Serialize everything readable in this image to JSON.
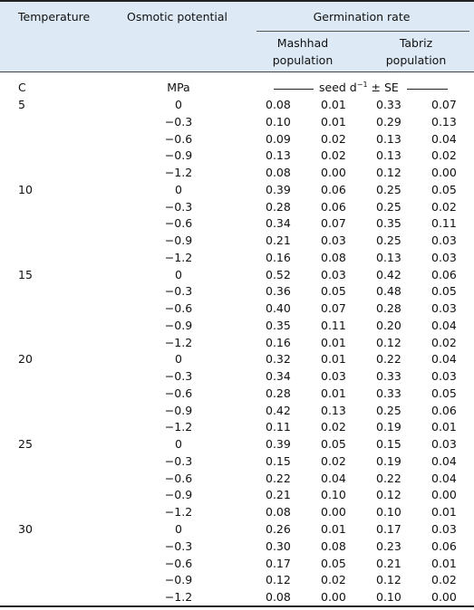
{
  "header": {
    "temperature": "Temperature",
    "osmotic": "Osmotic potential",
    "group": "Germination rate",
    "mashhad": [
      "Mashhad",
      "population"
    ],
    "tabriz": [
      "Tabriz",
      "population"
    ]
  },
  "units": {
    "temperature": "C",
    "osmotic": "MPa",
    "rate_base": "seed d",
    "rate_exp": "−1",
    "rate_rest": "± SE"
  },
  "table": {
    "groups": [
      {
        "temperature": "5",
        "rows": [
          [
            "0",
            "0.08",
            "0.01",
            "0.33",
            "0.07"
          ],
          [
            "−0.3",
            "0.10",
            "0.01",
            "0.29",
            "0.13"
          ],
          [
            "−0.6",
            "0.09",
            "0.02",
            "0.13",
            "0.04"
          ],
          [
            "−0.9",
            "0.13",
            "0.02",
            "0.13",
            "0.02"
          ],
          [
            "−1.2",
            "0.08",
            "0.00",
            "0.12",
            "0.00"
          ]
        ]
      },
      {
        "temperature": "10",
        "rows": [
          [
            "0",
            "0.39",
            "0.06",
            "0.25",
            "0.05"
          ],
          [
            "−0.3",
            "0.28",
            "0.06",
            "0.25",
            "0.02"
          ],
          [
            "−0.6",
            "0.34",
            "0.07",
            "0.35",
            "0.11"
          ],
          [
            "−0.9",
            "0.21",
            "0.03",
            "0.25",
            "0.03"
          ],
          [
            "−1.2",
            "0.16",
            "0.08",
            "0.13",
            "0.03"
          ]
        ]
      },
      {
        "temperature": "15",
        "rows": [
          [
            "0",
            "0.52",
            "0.03",
            "0.42",
            "0.06"
          ],
          [
            "−0.3",
            "0.36",
            "0.05",
            "0.48",
            "0.05"
          ],
          [
            "−0.6",
            "0.40",
            "0.07",
            "0.28",
            "0.03"
          ],
          [
            "−0.9",
            "0.35",
            "0.11",
            "0.20",
            "0.04"
          ],
          [
            "−1.2",
            "0.16",
            "0.01",
            "0.12",
            "0.02"
          ]
        ]
      },
      {
        "temperature": "20",
        "rows": [
          [
            "0",
            "0.32",
            "0.01",
            "0.22",
            "0.04"
          ],
          [
            "−0.3",
            "0.34",
            "0.03",
            "0.33",
            "0.03"
          ],
          [
            "−0.6",
            "0.28",
            "0.01",
            "0.33",
            "0.05"
          ],
          [
            "−0.9",
            "0.42",
            "0.13",
            "0.25",
            "0.06"
          ],
          [
            "−1.2",
            "0.11",
            "0.02",
            "0.19",
            "0.01"
          ]
        ]
      },
      {
        "temperature": "25",
        "rows": [
          [
            "0",
            "0.39",
            "0.05",
            "0.15",
            "0.03"
          ],
          [
            "−0.3",
            "0.15",
            "0.02",
            "0.19",
            "0.04"
          ],
          [
            "−0.6",
            "0.22",
            "0.04",
            "0.22",
            "0.04"
          ],
          [
            "−0.9",
            "0.21",
            "0.10",
            "0.12",
            "0.00"
          ],
          [
            "−1.2",
            "0.08",
            "0.00",
            "0.10",
            "0.01"
          ]
        ]
      },
      {
        "temperature": "30",
        "rows": [
          [
            "0",
            "0.26",
            "0.01",
            "0.17",
            "0.03"
          ],
          [
            "−0.3",
            "0.30",
            "0.08",
            "0.23",
            "0.06"
          ],
          [
            "−0.6",
            "0.17",
            "0.05",
            "0.21",
            "0.01"
          ],
          [
            "−0.9",
            "0.12",
            "0.02",
            "0.12",
            "0.02"
          ],
          [
            "−1.2",
            "0.08",
            "0.00",
            "0.10",
            "0.00"
          ]
        ]
      }
    ]
  }
}
